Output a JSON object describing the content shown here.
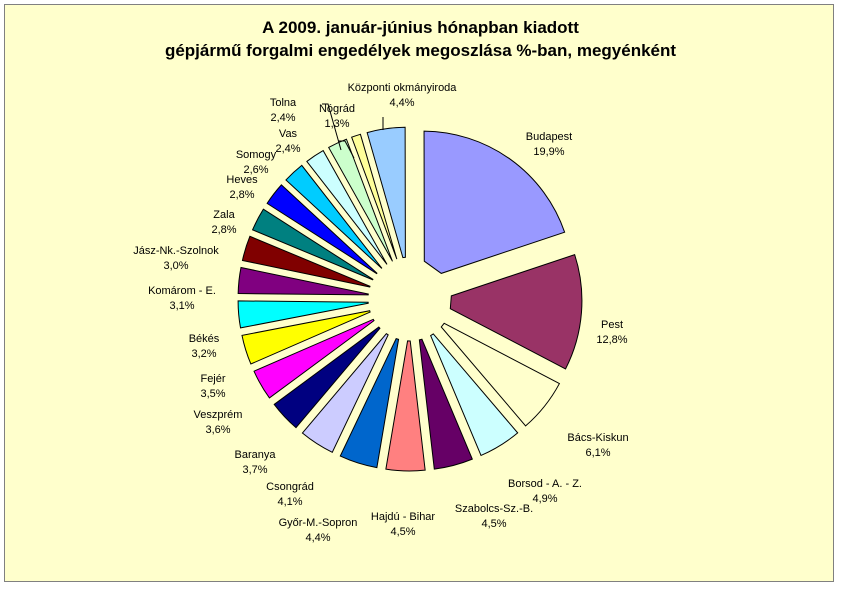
{
  "chart_data": {
    "type": "pie",
    "title": "A  2009. január-június hónapban kiadott",
    "subtitle": "gépjármű forgalmi engedélyek megoszlása %-ban, megyénként",
    "unit": "%",
    "slices": [
      {
        "label": "Budapest",
        "value": 19.9,
        "display": "19,9%",
        "color": "#9999ff"
      },
      {
        "label": "Pest",
        "value": 12.8,
        "display": "12,8%",
        "color": "#993366"
      },
      {
        "label": "Bács-Kiskun",
        "value": 6.1,
        "display": "6,1%",
        "color": "#ffffcc"
      },
      {
        "label": "Borsod - A. - Z.",
        "value": 4.9,
        "display": "4,9%",
        "color": "#ccffff"
      },
      {
        "label": "Szabolcs-Sz.-B.",
        "value": 4.5,
        "display": "4,5%",
        "color": "#660066"
      },
      {
        "label": "Hajdú - Bihar",
        "value": 4.5,
        "display": "4,5%",
        "color": "#ff8080"
      },
      {
        "label": "Győr-M.-Sopron",
        "value": 4.4,
        "display": "4,4%",
        "color": "#0066cc"
      },
      {
        "label": "Csongrád",
        "value": 4.1,
        "display": "4,1%",
        "color": "#ccccff"
      },
      {
        "label": "Baranya",
        "value": 3.7,
        "display": "3,7%",
        "color": "#000080"
      },
      {
        "label": "Veszprém",
        "value": 3.6,
        "display": "3,6%",
        "color": "#ff00ff"
      },
      {
        "label": "Fejér",
        "value": 3.5,
        "display": "3,5%",
        "color": "#ffff00"
      },
      {
        "label": "Békés",
        "value": 3.2,
        "display": "3,2%",
        "color": "#00ffff"
      },
      {
        "label": "Komárom - E.",
        "value": 3.1,
        "display": "3,1%",
        "color": "#800080"
      },
      {
        "label": "Jász-Nk.-Szolnok",
        "value": 3.0,
        "display": "3,0%",
        "color": "#800000"
      },
      {
        "label": "Zala",
        "value": 2.8,
        "display": "2,8%",
        "color": "#008080"
      },
      {
        "label": "Heves",
        "value": 2.8,
        "display": "2,8%",
        "color": "#0000ff"
      },
      {
        "label": "Somogy",
        "value": 2.6,
        "display": "2,6%",
        "color": "#00ccff"
      },
      {
        "label": "Vas",
        "value": 2.4,
        "display": "2,4%",
        "color": "#ccffff"
      },
      {
        "label": "Tolna",
        "value": 2.4,
        "display": "2,4%",
        "color": "#ccffcc"
      },
      {
        "label": "Nógrád",
        "value": 1.3,
        "display": "1,3%",
        "color": "#ffff99"
      },
      {
        "label": "Központi okmányiroda",
        "value": 4.4,
        "display": "4,4%",
        "color": "#99ccff"
      }
    ],
    "legend": "none",
    "labels": "outside"
  }
}
